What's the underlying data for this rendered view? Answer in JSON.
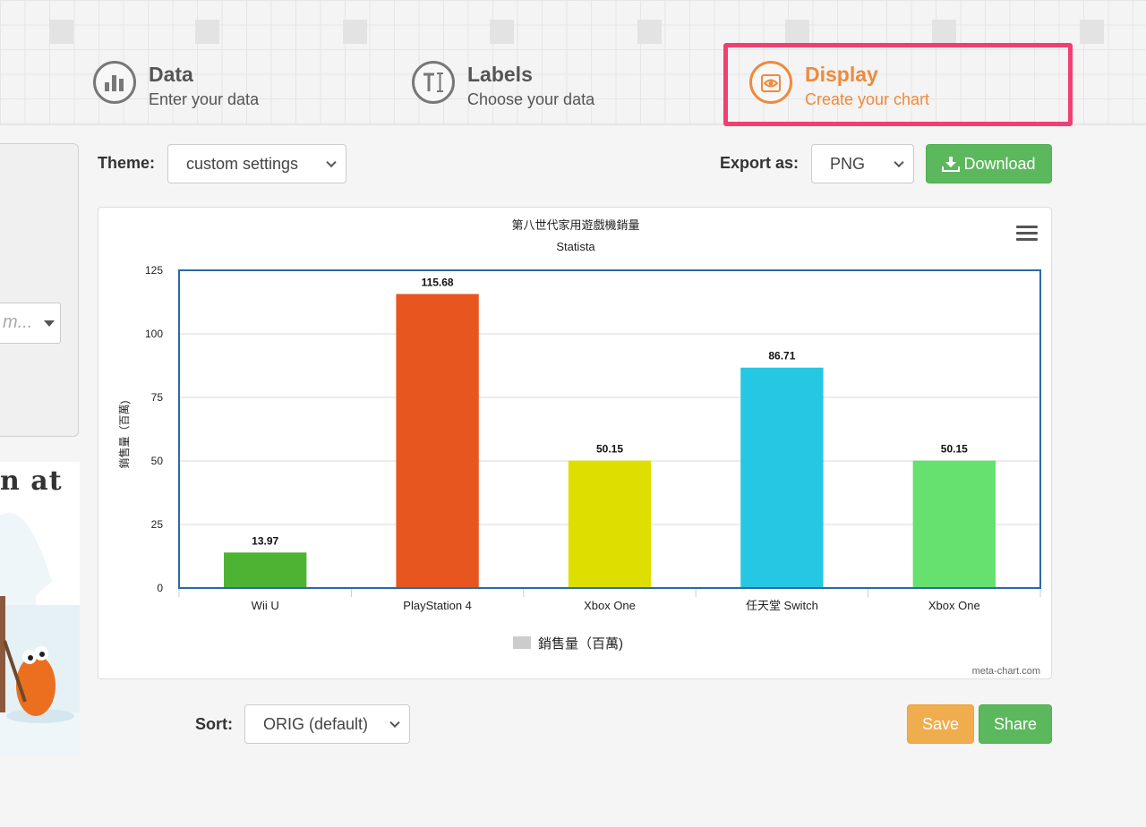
{
  "steps": [
    {
      "title": "Data",
      "subtitle": "Enter your data",
      "icon": "bar-chart-icon",
      "active": false
    },
    {
      "title": "Labels",
      "subtitle": "Choose your data",
      "icon": "text-cursor-icon",
      "active": false
    },
    {
      "title": "Display",
      "subtitle": "Create your chart",
      "icon": "eye-icon",
      "active": true
    }
  ],
  "left": {
    "select_value": "m...",
    "promo_text": "n at"
  },
  "toolbar": {
    "theme_label": "Theme:",
    "theme_value": "custom settings",
    "export_label": "Export as:",
    "export_value": "PNG",
    "download_label": "Download"
  },
  "footer": {
    "sort_label": "Sort:",
    "sort_value": "ORIG (default)",
    "save_label": "Save",
    "share_label": "Share"
  },
  "colors": {
    "accent": "#ef8a3c",
    "highlight": "#f23e73",
    "green_button": "#5cb85c",
    "orange_button": "#f0ad4e"
  },
  "chart_data": {
    "type": "bar",
    "title": "第八世代家用遊戲機銷量",
    "subtitle": "Statista",
    "ylabel": "銷售量（百萬)",
    "xlabel": "",
    "categories": [
      "Wii U",
      "PlayStation 4",
      "Xbox One",
      "任天堂 Switch",
      "Xbox One"
    ],
    "values": [
      13.97,
      115.68,
      50.15,
      86.71,
      50.15
    ],
    "value_labels": [
      "13.97",
      "115.68",
      "50.15",
      "86.71",
      "50.15"
    ],
    "bar_colors": [
      "#4db332",
      "#e8561f",
      "#dede00",
      "#26c7e3",
      "#66e06f"
    ],
    "ylim": [
      0,
      125
    ],
    "yticks": [
      "0",
      "25",
      "50",
      "75",
      "100",
      "125"
    ],
    "legend": "銷售量（百萬)",
    "legend_position": "bottom",
    "grid": true,
    "credit": "meta-chart.com"
  }
}
